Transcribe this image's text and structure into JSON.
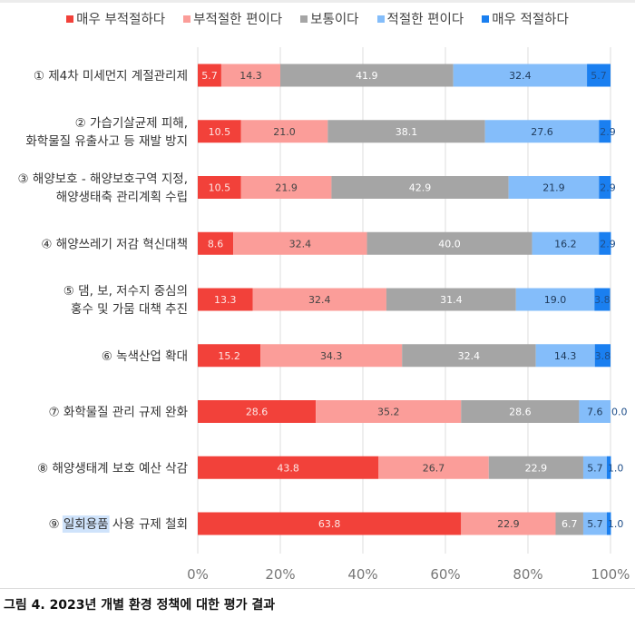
{
  "chart_data": {
    "type": "bar",
    "orientation": "horizontal",
    "stacked": true,
    "title": "",
    "xlabel": "",
    "ylabel": "",
    "xlim": [
      0,
      100
    ],
    "grid": true,
    "legend_position": "top",
    "x_ticks": [
      "0%",
      "20%",
      "40%",
      "60%",
      "80%",
      "100%"
    ],
    "categories": [
      [
        "① 제4차 미세먼지 계절관리제"
      ],
      [
        "② 가습기살균제 피해,",
        "화학물질 유출사고 등 재발 방지"
      ],
      [
        "③ 해양보호 - 해양보호구역 지정,",
        "해양생태축 관리계획 수립"
      ],
      [
        "④ 해양쓰레기 저감 혁신대책"
      ],
      [
        "⑤ 댐, 보, 저수지 중심의",
        "홍수 및 가뭄 대책 추진"
      ],
      [
        "⑥ 녹색산업 확대"
      ],
      [
        "⑦ 화학물질 관리 규제 완화"
      ],
      [
        "⑧ 해양생태계 보호 예산 삭감"
      ],
      [
        "⑨ 일회용품 사용 규제 철회"
      ]
    ],
    "highlighted_text": {
      "category_index": 8,
      "text": "일회용품"
    },
    "series": [
      {
        "name": "매우 부적절하다",
        "color": "#f2413a",
        "label_color": "#fde6e4",
        "values": [
          5.7,
          10.5,
          10.5,
          8.6,
          13.3,
          15.2,
          28.6,
          43.8,
          63.8
        ]
      },
      {
        "name": "부적절한 편이다",
        "color": "#fb9d99",
        "label_color": "#444444",
        "values": [
          14.3,
          21.0,
          21.9,
          32.4,
          32.4,
          34.3,
          35.2,
          26.7,
          22.9
        ]
      },
      {
        "name": "보통이다",
        "color": "#a5a5a5",
        "label_color": "#ffffff",
        "values": [
          41.9,
          38.1,
          42.9,
          40.0,
          31.4,
          32.4,
          28.6,
          22.9,
          6.7
        ]
      },
      {
        "name": "적절한 편이다",
        "color": "#84bdfa",
        "label_color": "#1f3a5a",
        "values": [
          32.4,
          27.6,
          21.9,
          16.2,
          19.0,
          14.3,
          7.6,
          5.7,
          5.7
        ]
      },
      {
        "name": "매우 적절하다",
        "color": "#1a7ff0",
        "label_color": "#1f4f8a",
        "values": [
          5.7,
          2.9,
          2.9,
          2.9,
          3.8,
          3.8,
          0.0,
          1.0,
          1.0
        ]
      }
    ]
  },
  "caption": "그림 4. 2023년 개별 환경 정책에 대한 평가 결과"
}
